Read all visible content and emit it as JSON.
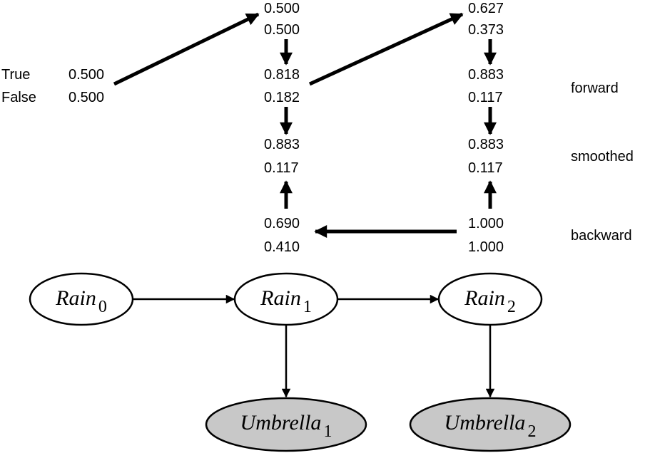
{
  "row_labels": {
    "true": "True",
    "false": "False"
  },
  "prior": {
    "true": "0.500",
    "false": "0.500"
  },
  "step1": {
    "predicted": {
      "true": "0.500",
      "false": "0.500"
    },
    "forward": {
      "true": "0.818",
      "false": "0.182"
    },
    "smoothed": {
      "true": "0.883",
      "false": "0.117"
    },
    "backward": {
      "true": "0.690",
      "false": "0.410"
    }
  },
  "step2": {
    "predicted": {
      "true": "0.627",
      "false": "0.373"
    },
    "forward": {
      "true": "0.883",
      "false": "0.117"
    },
    "smoothed": {
      "true": "0.883",
      "false": "0.117"
    },
    "backward": {
      "true": "1.000",
      "false": "1.000"
    }
  },
  "section_labels": {
    "forward": "forward",
    "smoothed": "smoothed",
    "backward": "backward"
  },
  "nodes": {
    "rain0": {
      "name": "Rain",
      "sub": "0"
    },
    "rain1": {
      "name": "Rain",
      "sub": "1"
    },
    "rain2": {
      "name": "Rain",
      "sub": "2"
    },
    "umbrella1": {
      "name": "Umbrella",
      "sub": "1"
    },
    "umbrella2": {
      "name": "Umbrella",
      "sub": "2"
    }
  },
  "colors": {
    "observed_fill": "#c8c8c8",
    "hidden_fill": "#ffffff",
    "stroke": "#000000"
  }
}
